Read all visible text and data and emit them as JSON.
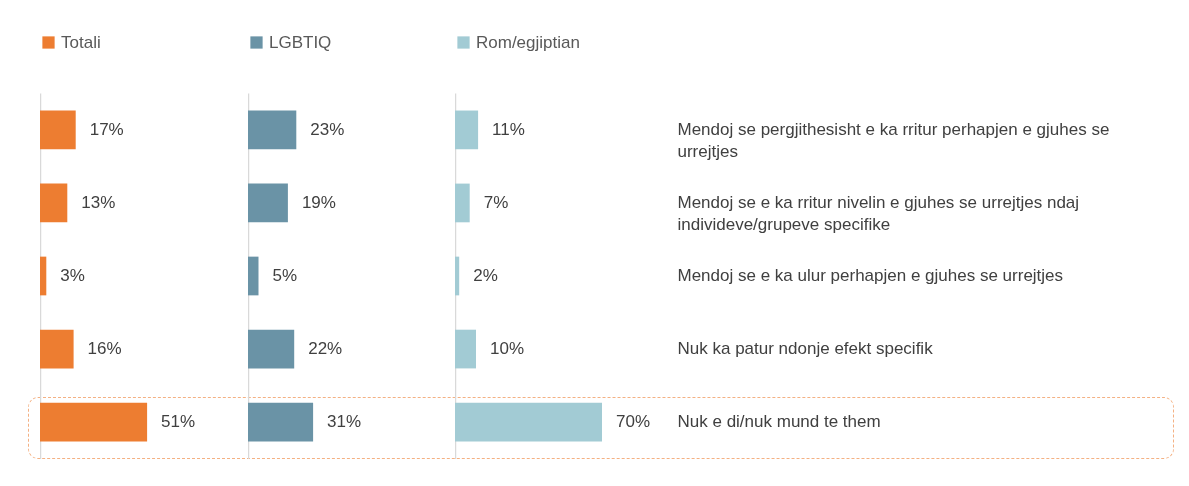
{
  "chart_data": [
    {
      "type": "bar",
      "orientation": "horizontal",
      "legend": "top",
      "tick_labels": false,
      "categories": [
        null,
        null,
        null,
        null,
        null
      ],
      "series": [
        {
          "name": "Totali",
          "color": "#ed7d31",
          "values": [
            17,
            13,
            3,
            16,
            51
          ],
          "value_labels": [
            "17%",
            "13%",
            "3%",
            "16%",
            "51%"
          ]
        }
      ]
    },
    {
      "type": "bar",
      "orientation": "horizontal",
      "legend": "top",
      "tick_labels": false,
      "categories": [
        null,
        null,
        null,
        null,
        null
      ],
      "series": [
        {
          "name": "LGBTIQ",
          "color": "#6a93a6",
          "values": [
            23,
            19,
            5,
            22,
            31
          ],
          "value_labels": [
            "23%",
            "19%",
            "5%",
            "22%",
            "31%"
          ]
        }
      ]
    },
    {
      "type": "bar",
      "orientation": "horizontal",
      "legend": "top",
      "tick_labels": "y",
      "categories": [
        "Mendoj se pergjithesisht e ka rritur perhapjen e gjuhes se urrejtjes",
        "Mendoj se e ka rritur nivelin e gjuhes se urrejtjes ndaj individeve/grupeve specifike",
        "Mendoj se e ka ulur perhapjen e gjuhes se urrejtjes",
        "Nuk ka patur ndonje efekt specifik",
        "Nuk e di/nuk mund te them"
      ],
      "series": [
        {
          "name": "Rom/egjiptian",
          "color": "#a2cbd4",
          "values": [
            11,
            7,
            2,
            10,
            70
          ],
          "value_labels": [
            "11%",
            "7%",
            "2%",
            "10%",
            "70%"
          ]
        }
      ]
    }
  ]
}
